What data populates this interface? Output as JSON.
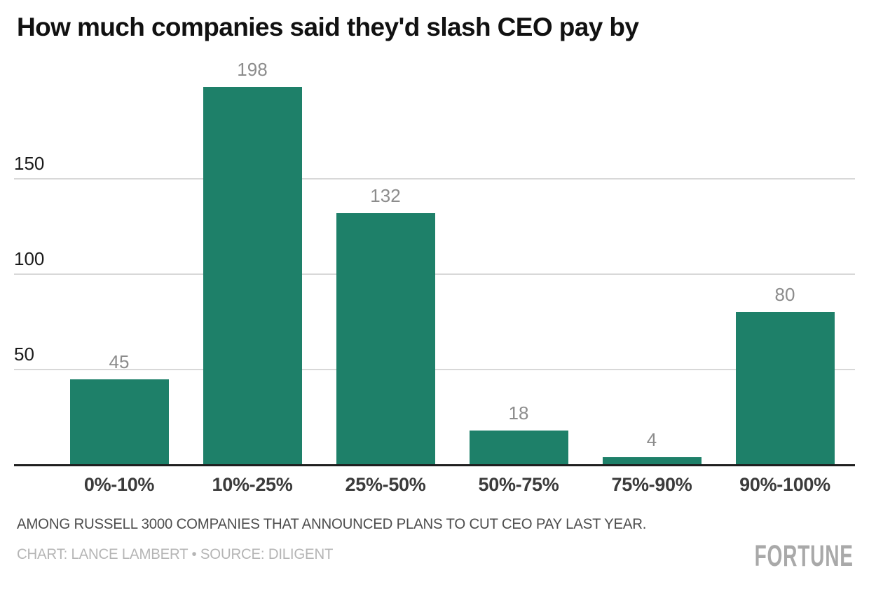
{
  "title": "How much companies said they'd slash CEO pay by",
  "chart_data": {
    "type": "bar",
    "title": "How much companies said they'd slash CEO pay by",
    "categories": [
      "0%-10%",
      "10%-25%",
      "25%-50%",
      "50%-75%",
      "75%-90%",
      "90%-100%"
    ],
    "values": [
      45,
      198,
      132,
      18,
      4,
      80
    ],
    "xlabel": "",
    "ylabel": "",
    "yticks": [
      50,
      100,
      150
    ],
    "ylim": [
      0,
      210
    ],
    "grid": true,
    "legend": false,
    "value_labels": true,
    "bar_color": "#1e8069"
  },
  "colors": {
    "bar": "#1e8069",
    "gridline": "#d8d8d8",
    "axis": "#1f1f1f",
    "value_label": "#8c8c8c",
    "x_label": "#3b3b3b",
    "y_tick": "#1a1a1a"
  },
  "footer": {
    "note": "AMONG RUSSELL 3000 COMPANIES THAT ANNOUNCED PLANS TO CUT CEO PAY LAST YEAR.",
    "credit": "CHART: LANCE LAMBERT • SOURCE: DILIGENT",
    "brand": "FORTUNE"
  }
}
